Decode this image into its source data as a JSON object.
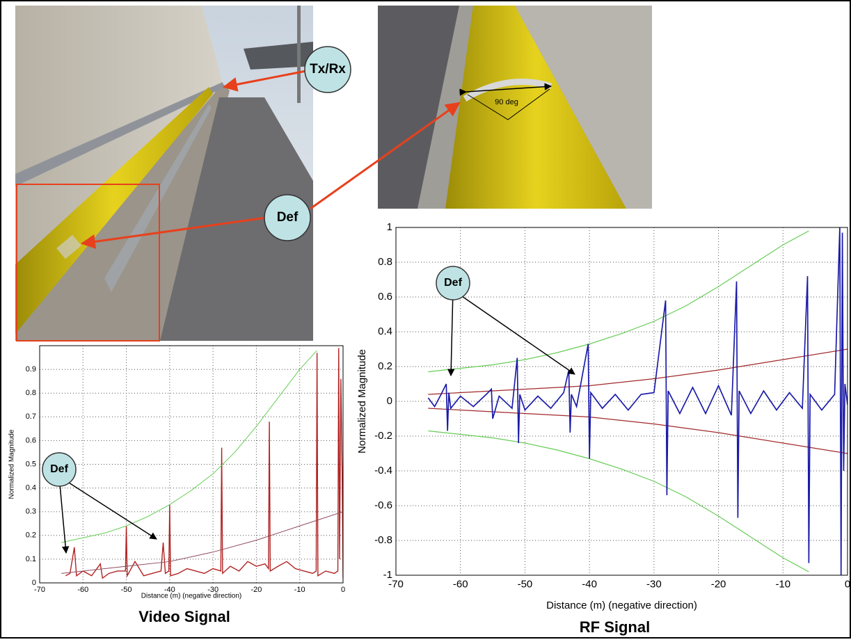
{
  "photos": {
    "labels": [
      "Tx/Rx",
      "Def",
      "90 deg"
    ]
  },
  "chart_data": [
    {
      "type": "line",
      "title": "Video Signal",
      "x_label": "Distance (m) (negative direction)",
      "y_label": "Normalized Magnitude",
      "xlim": [
        -70,
        0
      ],
      "ylim": [
        0,
        1
      ],
      "xticks": [
        -70,
        -60,
        -50,
        -40,
        -30,
        -20,
        -10,
        0
      ],
      "yticks": [
        0,
        0.1,
        0.2,
        0.3,
        0.4,
        0.5,
        0.6,
        0.7,
        0.8,
        0.9
      ],
      "grid": true,
      "annotations": [
        {
          "text": "Def"
        }
      ],
      "series": [
        {
          "color": "#b22222",
          "x": [
            -64,
            -63,
            -62,
            -61.5,
            -60,
            -58,
            -56,
            -55.5,
            -54,
            -52,
            -50.2,
            -50,
            -49.8,
            -48,
            -46,
            -44,
            -42,
            -41.5,
            -41,
            -40.2,
            -40,
            -39.8,
            -38,
            -36,
            -34,
            -32,
            -30,
            -28.2,
            -28,
            -27.8,
            -26,
            -24,
            -22,
            -20,
            -18,
            -17.2,
            -17,
            -16.8,
            -15,
            -13,
            -11,
            -9,
            -7,
            -6.2,
            -6,
            -5.8,
            -4,
            -2,
            -1.2,
            -1,
            -0.8,
            -0.5,
            -0.2,
            0
          ],
          "values": [
            0.03,
            0.04,
            0.15,
            0.03,
            0.05,
            0.03,
            0.08,
            0.02,
            0.04,
            0.05,
            0.05,
            0.24,
            0.03,
            0.09,
            0.03,
            0.04,
            0.05,
            0.17,
            0.04,
            0.05,
            0.33,
            0.03,
            0.04,
            0.06,
            0.05,
            0.04,
            0.06,
            0.05,
            0.57,
            0.04,
            0.07,
            0.05,
            0.09,
            0.07,
            0.08,
            0.06,
            0.68,
            0.05,
            0.07,
            0.09,
            0.06,
            0.05,
            0.04,
            0.05,
            0.97,
            0.03,
            0.05,
            0.04,
            0.05,
            0.99,
            0.1,
            0.86,
            0.46,
            0.02
          ]
        },
        {
          "color": "#66cc55",
          "x": [
            -65,
            -60,
            -55,
            -50,
            -45,
            -40,
            -35,
            -30,
            -25,
            -20,
            -15,
            -10,
            -6
          ],
          "values": [
            0.17,
            0.19,
            0.21,
            0.24,
            0.28,
            0.33,
            0.39,
            0.46,
            0.55,
            0.66,
            0.78,
            0.9,
            0.98
          ]
        },
        {
          "color": "#8e4b5e",
          "x": [
            -65,
            -60,
            -50,
            -40,
            -30,
            -20,
            -10,
            0
          ],
          "values": [
            0.04,
            0.05,
            0.07,
            0.09,
            0.13,
            0.18,
            0.24,
            0.3
          ]
        }
      ]
    },
    {
      "type": "line",
      "title": "RF Signal",
      "x_label": "Distance (m) (negative direction)",
      "y_label": "Normalized Magnitude",
      "xlim": [
        -70,
        0
      ],
      "ylim": [
        -1,
        1
      ],
      "xticks": [
        -70,
        -60,
        -50,
        -40,
        -30,
        -20,
        -10,
        0
      ],
      "yticks": [
        -1,
        -0.8,
        -0.6,
        -0.4,
        -0.2,
        0,
        0.2,
        0.4,
        0.6,
        0.8,
        1
      ],
      "grid": true,
      "annotations": [
        {
          "text": "Def"
        }
      ],
      "series": [
        {
          "color": "#66cc55",
          "x": [
            -65,
            -60,
            -55,
            -50,
            -45,
            -40,
            -35,
            -30,
            -25,
            -20,
            -15,
            -10,
            -6
          ],
          "values": [
            0.17,
            0.19,
            0.21,
            0.24,
            0.28,
            0.33,
            0.39,
            0.46,
            0.55,
            0.66,
            0.78,
            0.9,
            0.98
          ]
        },
        {
          "color": "#66cc55",
          "x": [
            -65,
            -60,
            -55,
            -50,
            -45,
            -40,
            -35,
            -30,
            -25,
            -20,
            -15,
            -10,
            -6
          ],
          "values": [
            -0.17,
            -0.19,
            -0.21,
            -0.24,
            -0.28,
            -0.33,
            -0.39,
            -0.46,
            -0.55,
            -0.66,
            -0.78,
            -0.9,
            -0.98
          ]
        },
        {
          "color": "#a0282a",
          "x": [
            -65,
            -60,
            -50,
            -40,
            -30,
            -20,
            -10,
            0
          ],
          "values": [
            0.04,
            0.05,
            0.07,
            0.09,
            0.13,
            0.18,
            0.24,
            0.3
          ]
        },
        {
          "color": "#a0282a",
          "x": [
            -65,
            -60,
            -50,
            -40,
            -30,
            -20,
            -10,
            0
          ],
          "values": [
            -0.04,
            -0.05,
            -0.07,
            -0.09,
            -0.13,
            -0.18,
            -0.24,
            -0.3
          ]
        },
        {
          "color": "#1a1aa8",
          "x": [
            -65,
            -64,
            -63,
            -62.2,
            -62,
            -61.8,
            -61.5,
            -60,
            -58,
            -56,
            -55.2,
            -55,
            -54,
            -52,
            -51.2,
            -51,
            -50.8,
            -50,
            -48,
            -46,
            -44,
            -43.2,
            -43,
            -42.8,
            -42,
            -40.2,
            -40,
            -39.8,
            -38,
            -36,
            -34,
            -32,
            -30,
            -28.2,
            -28,
            -27.8,
            -26,
            -24,
            -22,
            -20,
            -18,
            -17.2,
            -17,
            -16.8,
            -15,
            -13,
            -11,
            -9,
            -7,
            -6.2,
            -6,
            -5.8,
            -4,
            -2,
            -1.2,
            -1,
            -0.8,
            -0.6,
            -0.4,
            0
          ],
          "values": [
            0.02,
            -0.03,
            0.04,
            0.1,
            -0.17,
            0.05,
            -0.04,
            0.03,
            -0.03,
            0.04,
            0.07,
            -0.1,
            0.03,
            -0.04,
            0.25,
            -0.24,
            0.04,
            -0.05,
            0.03,
            -0.04,
            0.05,
            0.18,
            -0.18,
            0.04,
            -0.03,
            0.33,
            -0.33,
            0.05,
            -0.04,
            0.04,
            -0.05,
            0.04,
            0.05,
            0.58,
            -0.54,
            0.06,
            -0.07,
            0.08,
            -0.07,
            0.09,
            -0.08,
            0.69,
            -0.67,
            0.06,
            -0.07,
            0.06,
            -0.05,
            0.05,
            -0.04,
            0.72,
            -0.93,
            0.04,
            -0.05,
            0.04,
            1,
            -1,
            0.97,
            -0.4,
            0.1,
            -0.02
          ]
        }
      ]
    }
  ]
}
